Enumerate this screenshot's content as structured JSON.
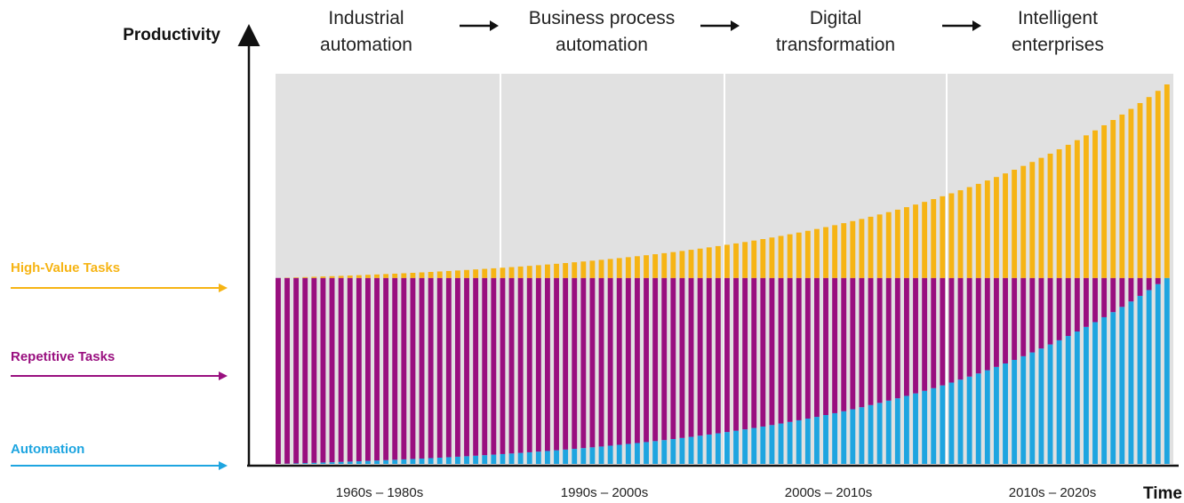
{
  "chart_data": {
    "type": "bar",
    "stacked": true,
    "ylabel": "Productivity",
    "xlabel": "Time",
    "colors": {
      "automation": "#1ea5e0",
      "repetitive": "#990f7f",
      "high_value": "#f6b414",
      "era_background": "#e1e1e1"
    },
    "eras": [
      {
        "name": "Industrial automation",
        "lines": [
          "Industrial",
          "automation"
        ],
        "period": "1960s – 1980s"
      },
      {
        "name": "Business process automation",
        "lines": [
          "Business process",
          "automation"
        ],
        "period": "1990s – 2000s"
      },
      {
        "name": "Digital transformation",
        "lines": [
          "Digital",
          "transformation"
        ],
        "period": "2000s – 2010s"
      },
      {
        "name": "Intelligent enterprises",
        "lines": [
          "Intelligent",
          "enterprises"
        ],
        "period": "2010s  – 2020s"
      }
    ],
    "series": [
      {
        "name": "Automation",
        "key": "automation",
        "color": "#1ea5e0"
      },
      {
        "name": "Repetitive Tasks",
        "key": "repetitive",
        "color": "#990f7f"
      },
      {
        "name": "High-Value Tasks",
        "key": "high_value",
        "color": "#f6b414"
      }
    ],
    "bar_count": 100,
    "baseline_level": 0.49,
    "automation_curve": {
      "start": 0.0,
      "end": 0.49,
      "shape": "exponential"
    },
    "total_curve": {
      "start": 0.49,
      "end": 1.0,
      "shape": "exponential"
    }
  },
  "legend": [
    {
      "label": "High-Value Tasks",
      "color": "#f6b414"
    },
    {
      "label": "Repetitive Tasks",
      "color": "#990f7f"
    },
    {
      "label": "Automation",
      "color": "#1ea5e0"
    }
  ]
}
